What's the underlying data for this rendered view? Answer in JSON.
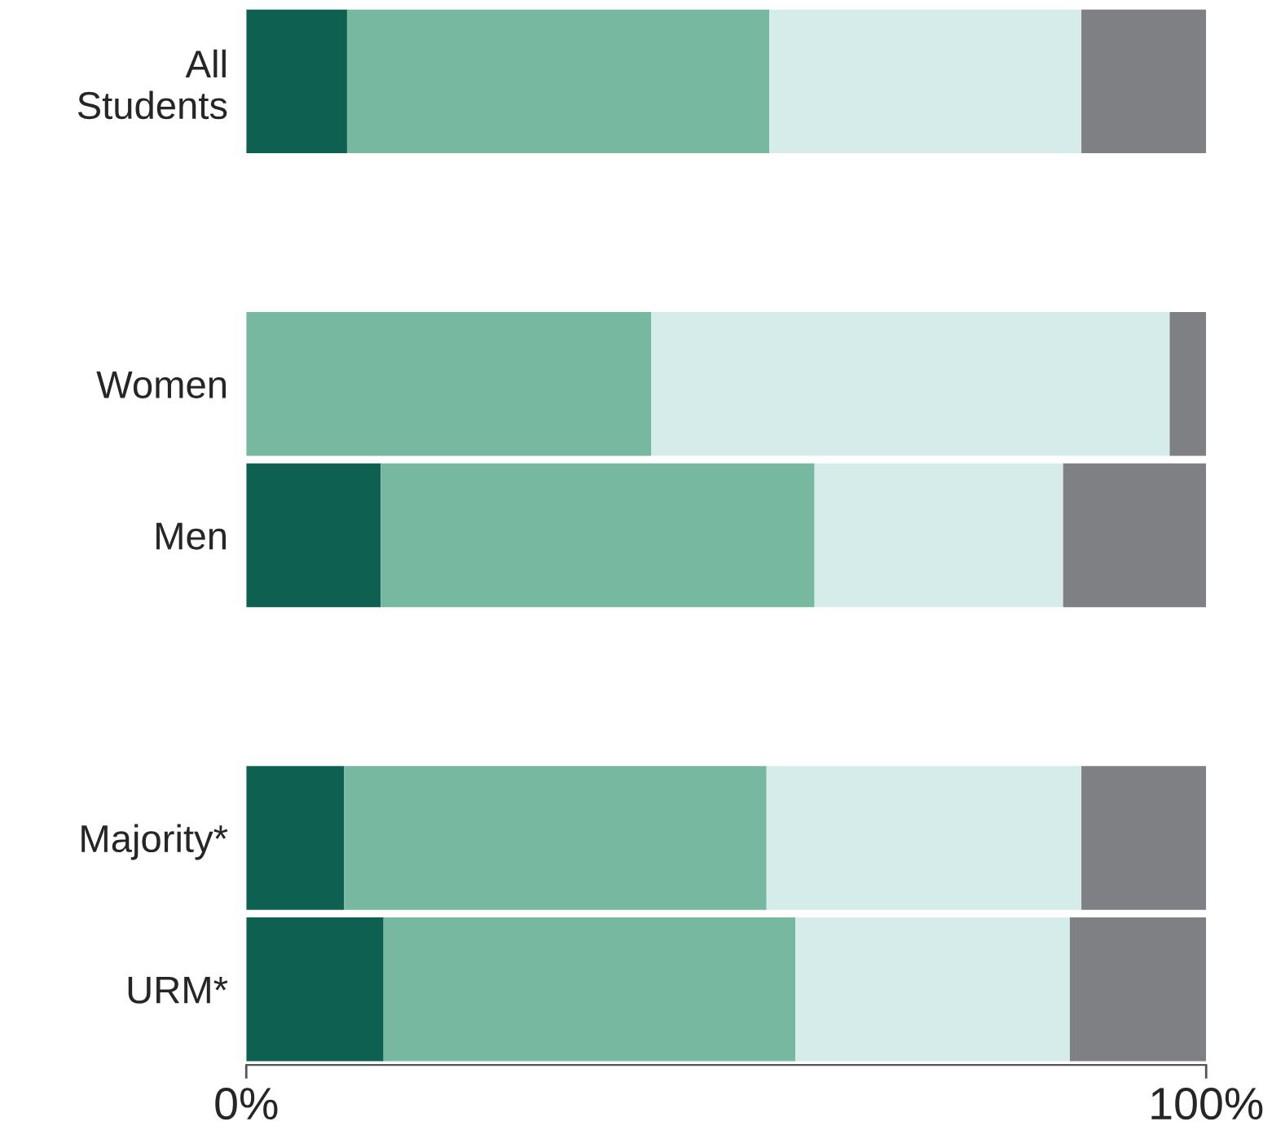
{
  "chart_data": {
    "type": "bar",
    "orientation": "horizontal",
    "stacked": true,
    "categories": [
      "All\nStudents",
      null,
      "Women",
      "Men",
      null,
      "Majority*",
      "URM*"
    ],
    "series": [
      {
        "color": "#0e6150",
        "values": [
          10.5,
          null,
          0,
          14,
          null,
          10.2,
          14.3
        ]
      },
      {
        "color": "#77b8a0",
        "values": [
          44,
          null,
          42.2,
          45.2,
          null,
          44,
          42.9
        ]
      },
      {
        "color": "#d5ecea",
        "values": [
          32.5,
          null,
          54,
          25.9,
          null,
          32.8,
          28.6
        ]
      },
      {
        "color": "#7f8083",
        "values": [
          13,
          null,
          3.8,
          14.9,
          null,
          13,
          14.2
        ]
      }
    ],
    "xlim": [
      0,
      100
    ],
    "xticks": [
      {
        "value": 0,
        "label": "0%"
      },
      {
        "value": 100,
        "label": "100%"
      }
    ],
    "grid": false,
    "legend": false
  }
}
